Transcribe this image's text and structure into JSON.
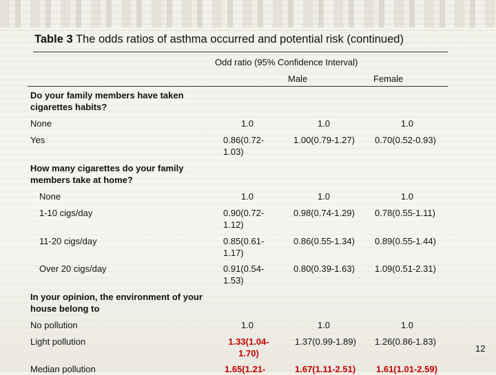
{
  "title": {
    "prefix": "Table 3",
    "text": "The odds ratios of asthma occurred and potential risk (continued)"
  },
  "header": {
    "group": "Odd ratio (95% Confidence Interval)",
    "male": "Male",
    "female": "Female"
  },
  "sections": [
    {
      "heading": "Do your family members have taken cigarettes habits?",
      "rows": [
        {
          "label": "None",
          "c1": "1.0",
          "c2": "1.0",
          "c3": "1.0"
        },
        {
          "label": "Yes",
          "c1": "0.86(0.72-1.03)",
          "c2": "1.00(0.79-1.27)",
          "c3": "0.70(0.52-0.93)"
        }
      ]
    },
    {
      "heading": "How many cigarettes do your family members take at home?",
      "rows": [
        {
          "label": "None",
          "c1": "1.0",
          "c2": "1.0",
          "c3": "1.0"
        },
        {
          "label": "1-10 cigs/day",
          "c1": "0.90(0.72-1.12)",
          "c2": "0.98(0.74-1.29)",
          "c3": "0.78(0.55-1.11)"
        },
        {
          "label": "11-20 cigs/day",
          "c1": "0.85(0.61-1.17)",
          "c2": "0.86(0.55-1.34)",
          "c3": "0.89(0.55-1.44)"
        },
        {
          "label": "Over 20 cigs/day",
          "c1": "0.91(0.54-1.53)",
          "c2": "0.80(0.39-1.63)",
          "c3": "1.09(0.51-2.31)"
        }
      ]
    },
    {
      "heading": "In your opinion, the environment of your house belong to",
      "rows": [
        {
          "label": "No pollution",
          "c1": "1.0",
          "c2": "1.0",
          "c3": "1.0"
        },
        {
          "label": "Light pollution",
          "c1": "1.33(1.04-1.70)",
          "c2": "1.37(0.99-1.89)",
          "c3": "1.26(0.86-1.83)"
        },
        {
          "label": "Median pollution",
          "c1": "1.65(1.21-",
          "c2": "1.67(1.11-2.51)",
          "c3": "1.61(1.01-2.59)"
        }
      ]
    }
  ],
  "highlight_color": "#c00000",
  "page_number": "12"
}
